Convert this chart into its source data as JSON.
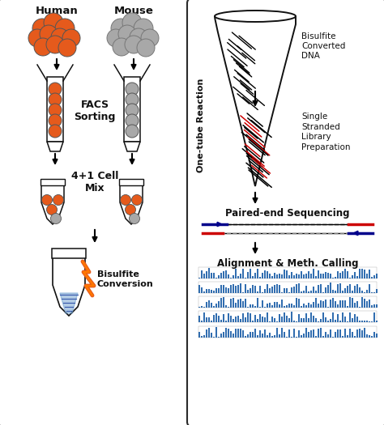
{
  "bg_color": "#ffffff",
  "border_color": "#2a2a2a",
  "orange_cell_color": "#E55A1C",
  "gray_cell_color": "#A8A8A8",
  "blue_bar_color": "#1B5EA8",
  "red_line_color": "#CC0000",
  "blue_line_color": "#00008B",
  "dark_line_color": "#111111",
  "text_color": "#111111",
  "human_label": "Human",
  "mouse_label": "Mouse",
  "facs_label": "FACS\nSorting",
  "mix_label": "4+1 Cell\nMix",
  "bisulfite_conv_label": "Bisulfite\nConversion",
  "onetube_label": "One-tube Reaction",
  "bisulfite_dna_label": "Bisulfite\nConverted\nDNA",
  "sslibrary_label": "Single\nStranded\nLibrary\nPreparation",
  "pairedend_label": "Paired-end Sequencing",
  "alignment_label": "Alignment & Meth. Calling"
}
